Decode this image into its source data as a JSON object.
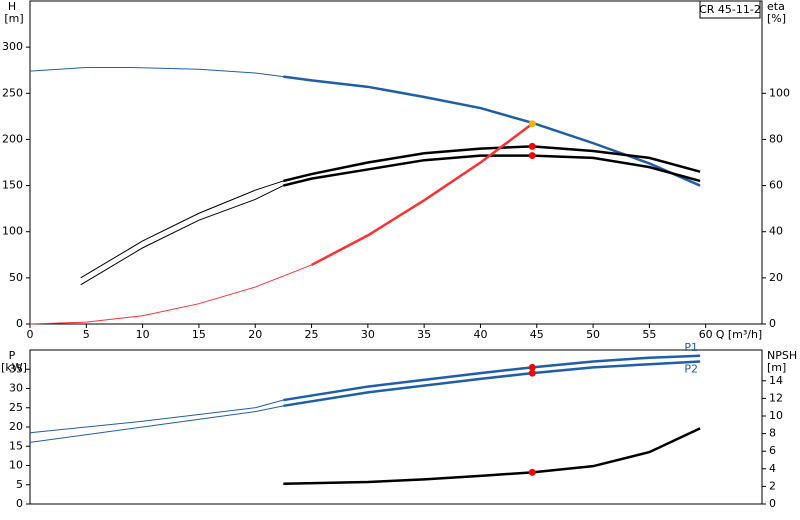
{
  "chart_data": [
    {
      "type": "line",
      "ylabel": "H",
      "yunit": "[m]",
      "y2label": "eta",
      "y2unit": "[%]",
      "xlabel": "Q [m³/h]",
      "annotation": "CR 45-11-2",
      "xlim": [
        0,
        65
      ],
      "xticks": [
        0,
        5,
        10,
        15,
        20,
        25,
        30,
        35,
        40,
        45,
        50,
        55,
        60
      ],
      "ylim": [
        0,
        350
      ],
      "yticks": [
        0,
        50,
        100,
        150,
        200,
        250,
        300
      ],
      "y2lim": [
        0,
        140
      ],
      "y2ticks": [
        0,
        20,
        40,
        60,
        80,
        100
      ],
      "thick_from": 22.5,
      "series": [
        {
          "color": "#1f5fa8",
          "x": [
            0,
            5,
            9,
            15,
            20,
            22.5,
            25,
            30,
            35,
            40,
            44.6,
            50,
            55,
            59.5
          ],
          "values": [
            274,
            278,
            278,
            276,
            272,
            268,
            264,
            257,
            246,
            234,
            218,
            196,
            174,
            150
          ]
        },
        {
          "color": "#000000",
          "axis": "y2",
          "x": [
            4.5,
            10,
            15,
            20,
            22.5,
            25,
            30,
            35,
            40,
            44.6,
            50,
            55,
            59.5
          ],
          "values": [
            20,
            36,
            48,
            58,
            62,
            65,
            70,
            74,
            76,
            77,
            75,
            72,
            66
          ]
        },
        {
          "color": "#000000",
          "axis": "y2",
          "x": [
            4.5,
            10,
            15,
            20,
            22.5,
            25,
            30,
            35,
            40,
            44.6,
            50,
            55,
            59.5
          ],
          "values": [
            17,
            33,
            45,
            54,
            60,
            63,
            67,
            71,
            73,
            73,
            72,
            68,
            62
          ]
        },
        {
          "color": "#ff3030",
          "x": [
            0,
            5,
            10,
            15,
            20,
            25,
            30,
            35,
            40,
            44.6
          ],
          "values": [
            0,
            2,
            9,
            22,
            40,
            64,
            96,
            134,
            175,
            217
          ]
        }
      ],
      "points": [
        {
          "x": 44.6,
          "y": 217,
          "color": "#f7b500"
        },
        {
          "x": 44.6,
          "y": 77,
          "axis": "y2",
          "color": "#ff0000"
        },
        {
          "x": 44.6,
          "y": 73,
          "axis": "y2",
          "color": "#ff0000"
        }
      ]
    },
    {
      "type": "line",
      "ylabel": "P",
      "yunit": "[kW]",
      "y2label": "NPSH",
      "y2unit": "[m]",
      "xlim": [
        0,
        65
      ],
      "ylim": [
        0,
        40
      ],
      "yticks": [
        0,
        5,
        10,
        15,
        20,
        25,
        30,
        35
      ],
      "y2lim": [
        0,
        17.5
      ],
      "y2ticks": [
        0,
        2,
        4,
        6,
        8,
        10,
        12,
        14
      ],
      "thick_from": 22.5,
      "series": [
        {
          "name": "P1",
          "color": "#1f5fa8",
          "x": [
            0,
            10,
            20,
            22.5,
            30,
            40,
            44.6,
            50,
            55,
            59.5
          ],
          "values": [
            18.5,
            21.5,
            25,
            27,
            30.5,
            34,
            35.5,
            37,
            38,
            38.5
          ]
        },
        {
          "name": "P2",
          "color": "#1f5fa8",
          "x": [
            0,
            10,
            20,
            22.5,
            30,
            40,
            44.6,
            50,
            55,
            59.5
          ],
          "values": [
            16,
            20,
            24,
            25.5,
            29,
            32.5,
            34,
            35.5,
            36.3,
            37
          ]
        },
        {
          "color": "#000000",
          "axis": "y2",
          "x": [
            22.5,
            30,
            35,
            40,
            44.6,
            50,
            55,
            59.5
          ],
          "values": [
            2.3,
            2.5,
            2.8,
            3.2,
            3.6,
            4.3,
            5.9,
            8.6
          ]
        }
      ],
      "points": [
        {
          "x": 44.6,
          "y": 35.5,
          "color": "#ff0000"
        },
        {
          "x": 44.6,
          "y": 34,
          "color": "#ff0000"
        },
        {
          "x": 44.6,
          "y": 3.6,
          "axis": "y2",
          "color": "#ff0000"
        }
      ]
    }
  ]
}
